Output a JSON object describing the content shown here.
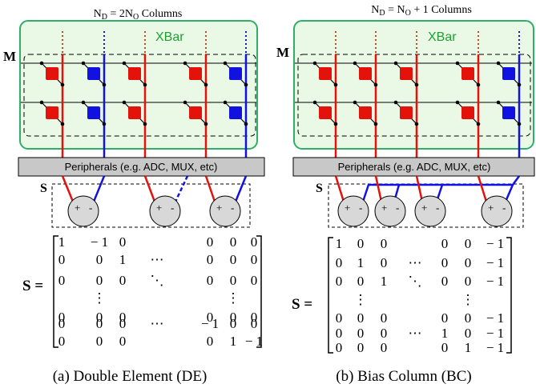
{
  "panels": [
    {
      "header_main": "N",
      "header_sub": "D",
      "header_rest": " = 2N",
      "header_sub2": "O",
      "header_tail": " Columns",
      "xbar_label": "XBar",
      "m_label": "M",
      "s_label": "S",
      "peripherals_label": "Peripherals (e.g. ADC, MUX, etc)",
      "op_plus": "+",
      "op_minus": "-",
      "matrix_label": "S =",
      "matrix_rows": [
        [
          "1",
          "− 1",
          "0",
          "",
          "0",
          "0",
          "0"
        ],
        [
          "0",
          "0",
          "1",
          "⋯",
          "0",
          "0",
          "0"
        ],
        [
          "0",
          "0",
          "0",
          "⋱",
          "0",
          "0",
          "0"
        ],
        [
          "",
          "⋮",
          "",
          "",
          "",
          "⋮",
          ""
        ],
        [
          "0",
          "0",
          "0",
          "",
          "0",
          "0",
          "0"
        ],
        [
          "0",
          "0",
          "0",
          "⋯",
          "− 1",
          "0",
          "0"
        ],
        [
          "0",
          "0",
          "0",
          "",
          "0",
          "1",
          "− 1"
        ]
      ],
      "caption": "(a) Double Element (DE)"
    },
    {
      "header_main": "N",
      "header_sub": "D",
      "header_rest": " = N",
      "header_sub2": "O",
      "header_tail": " + 1 Columns",
      "xbar_label": "XBar",
      "m_label": "M",
      "s_label": "S",
      "peripherals_label": "Peripherals (e.g. ADC, MUX, etc)",
      "op_plus": "+",
      "op_minus": "-",
      "matrix_label": "S =",
      "matrix_rows": [
        [
          "1",
          "0",
          "0",
          "",
          "0",
          "0",
          "− 1"
        ],
        [
          "0",
          "1",
          "0",
          "⋯",
          "0",
          "0",
          "− 1"
        ],
        [
          "0",
          "0",
          "1",
          "⋱",
          "0",
          "0",
          "− 1"
        ],
        [
          "",
          "⋮",
          "",
          "",
          "",
          "⋮",
          ""
        ],
        [
          "0",
          "0",
          "0",
          "",
          "0",
          "0",
          "− 1"
        ],
        [
          "0",
          "0",
          "0",
          "⋯",
          "1",
          "0",
          "− 1"
        ],
        [
          "0",
          "0",
          "0",
          "",
          "0",
          "1",
          "− 1"
        ]
      ],
      "caption": "(b) Bias Column (BC)"
    }
  ],
  "colors": {
    "red": "#e3120b",
    "blue": "#1212e0",
    "xbar_fill": "#eaf9e6",
    "xbar_stroke": "#2fae6a",
    "xbar_text": "#1f9e32",
    "peripheral_fill": "#c8c8c8",
    "opamp_fill": "#d8d8d8",
    "dots": "#c04a1a"
  }
}
